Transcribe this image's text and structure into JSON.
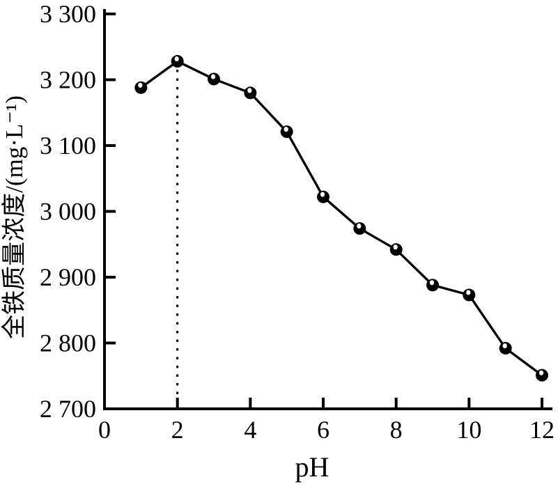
{
  "chart_data": {
    "type": "line",
    "title": "",
    "xlabel": "pH",
    "ylabel": "全铁质量浓度/(mg·L⁻¹)",
    "x": [
      1,
      2,
      3,
      4,
      5,
      6,
      7,
      8,
      9,
      10,
      11,
      12
    ],
    "y": [
      3188,
      3228,
      3201,
      3180,
      3121,
      3022,
      2974,
      2942,
      2888,
      2873,
      2792,
      2751
    ],
    "series_name": "全铁质量浓度",
    "xlim": [
      0,
      12
    ],
    "ylim": [
      2700,
      3300
    ],
    "x_ticks": [
      0,
      2,
      4,
      6,
      8,
      10,
      12
    ],
    "x_tick_labels": [
      "0",
      "2",
      "4",
      "6",
      "8",
      "10",
      "12"
    ],
    "y_ticks": [
      2700,
      2800,
      2900,
      3000,
      3100,
      3200,
      3300
    ],
    "y_tick_labels": [
      "2 700",
      "2 800",
      "2 900",
      "3 000",
      "3 100",
      "3 200",
      "3 300"
    ],
    "grid": false,
    "legend": "none",
    "annotation": {
      "type": "dotted-vertical-line",
      "x": 2,
      "note": "optimum pH guide line at peak value 3228"
    },
    "marker_style": "black sphere with white specular highlight",
    "line_color": "#000000",
    "axis_color": "#000000",
    "background_color": "#ffffff"
  }
}
